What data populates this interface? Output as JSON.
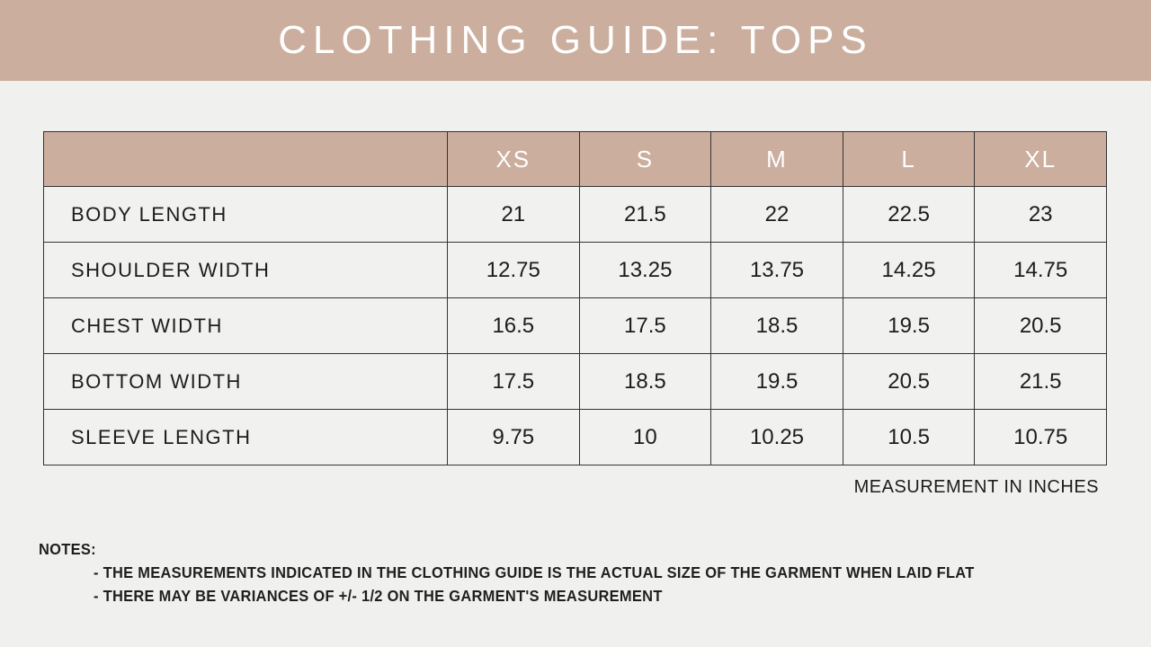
{
  "header": {
    "title": "CLOTHING GUIDE: TOPS"
  },
  "table": {
    "corner_label": "",
    "columns": [
      "XS",
      "S",
      "M",
      "L",
      "XL"
    ],
    "rows": [
      {
        "label": "BODY LENGTH",
        "values": [
          "21",
          "21.5",
          "22",
          "22.5",
          "23"
        ]
      },
      {
        "label": "SHOULDER WIDTH",
        "values": [
          "12.75",
          "13.25",
          "13.75",
          "14.25",
          "14.75"
        ]
      },
      {
        "label": "CHEST WIDTH",
        "values": [
          "16.5",
          "17.5",
          "18.5",
          "19.5",
          "20.5"
        ]
      },
      {
        "label": "BOTTOM WIDTH",
        "values": [
          "17.5",
          "18.5",
          "19.5",
          "20.5",
          "21.5"
        ]
      },
      {
        "label": "SLEEVE LENGTH",
        "values": [
          "9.75",
          "10",
          "10.25",
          "10.5",
          "10.75"
        ]
      }
    ],
    "footnote": "MEASUREMENT IN INCHES"
  },
  "notes": {
    "heading": "NOTES:",
    "items": [
      "- THE MEASUREMENTS INDICATED IN THE CLOTHING GUIDE IS THE ACTUAL SIZE OF THE GARMENT WHEN LAID FLAT",
      "- THERE MAY BE VARIANCES OF +/- 1/2 ON THE GARMENT'S MEASUREMENT"
    ]
  },
  "colors": {
    "banner": "#cbae9e",
    "background": "#f0f1ef",
    "border": "#333333",
    "text": "#1c1c1c",
    "header_text": "#ffffff"
  }
}
